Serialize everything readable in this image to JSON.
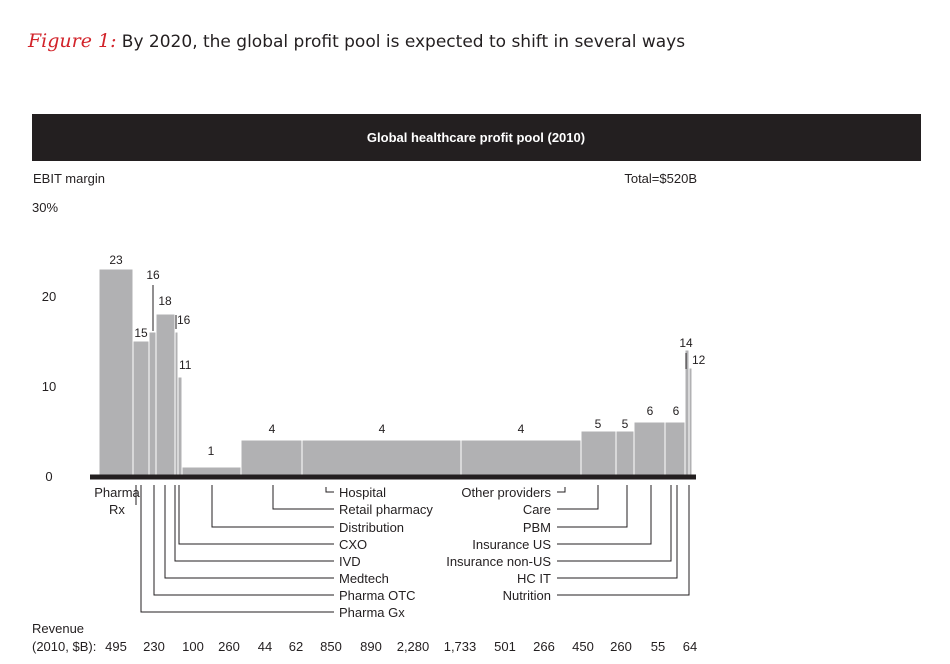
{
  "figure": {
    "label": "Figure 1:",
    "title": "By 2020, the global profit pool is expected to shift in several ways"
  },
  "colors": {
    "banner": "#231f20",
    "banner_text": "#ffffff",
    "bar": "#b1b1b3",
    "bar_border": "#ffffff",
    "axis": "#231f20",
    "text": "#231f20",
    "figure_label": "#d2232a"
  },
  "chart_data": {
    "type": "bar",
    "subtype": "marimekko (variable-width bars)",
    "banner": "Global healthcare profit pool (2010)",
    "y_label": "EBIT margin",
    "total_label": "Total=$520B",
    "ylim": [
      0,
      30
    ],
    "y_ticks": [
      "0",
      "10",
      "20",
      "30%"
    ],
    "revenue_label_line1": "Revenue",
    "revenue_label_line2": "(2010, $B):",
    "segments": [
      {
        "name": "Pharma Rx",
        "revenue": "495",
        "margin": 23
      },
      {
        "name": "Pharma Gx",
        "revenue": "230",
        "margin": 15
      },
      {
        "name": "Pharma OTC",
        "revenue": "100",
        "margin": 16
      },
      {
        "name": "Medtech",
        "revenue": "260",
        "margin": 18
      },
      {
        "name": "IVD",
        "revenue": "44",
        "margin": 16
      },
      {
        "name": "CXO",
        "revenue": "62",
        "margin": 11
      },
      {
        "name": "Distribution",
        "revenue": "850",
        "margin": 1
      },
      {
        "name": "Retail pharmacy",
        "revenue": "890",
        "margin": 4
      },
      {
        "name": "Hospital",
        "revenue": "2,280",
        "margin": 4
      },
      {
        "name": "Other providers",
        "revenue": "1,733",
        "margin": 4
      },
      {
        "name": "Care",
        "revenue": "501",
        "margin": 5
      },
      {
        "name": "PBM",
        "revenue": "266",
        "margin": 5
      },
      {
        "name": "Insurance US",
        "revenue": "450",
        "margin": 6
      },
      {
        "name": "Insurance non-US",
        "revenue": "260",
        "margin": 6
      },
      {
        "name": "HC IT",
        "revenue": "55",
        "margin": 14
      },
      {
        "name": "Nutrition",
        "revenue": "64",
        "margin": 12
      }
    ]
  }
}
